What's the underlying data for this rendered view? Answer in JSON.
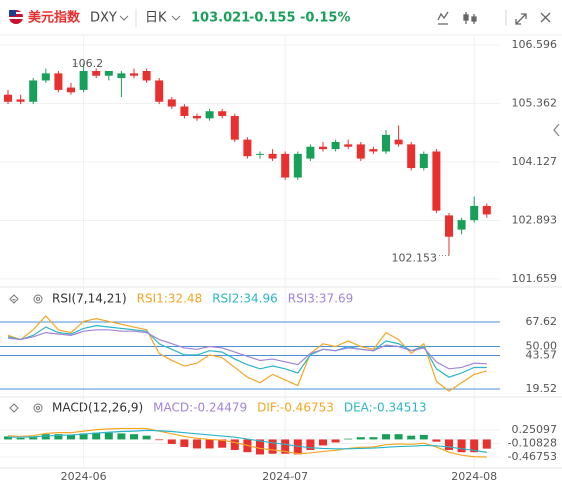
{
  "header": {
    "name": "美元指数",
    "symbol": "DXY",
    "period": "日K",
    "price": "103.021",
    "change": "-0.155",
    "change_pct": "-0.15%"
  },
  "chart_data": [
    {
      "type": "candlestick",
      "categories": [
        null,
        null,
        null,
        null,
        null,
        null,
        "2024-06",
        null,
        null,
        null,
        null,
        null,
        null,
        null,
        null,
        null,
        null,
        null,
        null,
        null,
        null,
        null,
        "2024-07",
        null,
        null,
        null,
        null,
        null,
        null,
        null,
        null,
        null,
        null,
        null,
        null,
        null,
        null,
        "2024-08",
        null
      ],
      "open": [
        105.55,
        105.45,
        105.4,
        105.85,
        106.0,
        105.7,
        105.65,
        106.05,
        105.95,
        105.9,
        106.0,
        106.05,
        105.85,
        105.45,
        105.3,
        105.1,
        105.05,
        105.2,
        105.1,
        104.6,
        104.3,
        104.3,
        104.3,
        103.8,
        104.2,
        104.45,
        104.4,
        104.5,
        104.5,
        104.4,
        104.35,
        104.6,
        104.5,
        104.0,
        104.35,
        103.0,
        102.7,
        102.9,
        103.2
      ],
      "high": [
        105.65,
        105.55,
        105.9,
        106.1,
        106.05,
        105.8,
        106.2,
        106.102,
        106.05,
        106.05,
        106.1,
        106.1,
        105.9,
        105.5,
        105.35,
        105.15,
        105.25,
        105.25,
        105.15,
        104.65,
        104.35,
        104.4,
        104.35,
        104.35,
        104.5,
        104.55,
        104.6,
        104.6,
        104.55,
        104.45,
        104.8,
        104.9,
        104.55,
        104.35,
        104.4,
        103.05,
        102.95,
        103.4,
        103.25
      ],
      "low": [
        105.35,
        105.35,
        105.35,
        105.8,
        105.6,
        105.55,
        105.6,
        105.9,
        105.85,
        105.5,
        105.9,
        105.8,
        105.35,
        105.25,
        105.05,
        105.0,
        105.0,
        105.05,
        104.55,
        104.2,
        104.2,
        104.15,
        103.75,
        103.75,
        104.15,
        104.35,
        104.35,
        104.4,
        104.15,
        104.3,
        104.3,
        104.45,
        103.95,
        103.95,
        103.05,
        102.153,
        102.6,
        102.85,
        102.95
      ],
      "close": [
        105.4,
        105.4,
        105.85,
        106.0,
        105.65,
        105.6,
        106.05,
        105.95,
        106.05,
        106.0,
        105.95,
        105.85,
        105.4,
        105.3,
        105.1,
        105.05,
        105.2,
        105.1,
        104.6,
        104.25,
        104.3,
        104.2,
        103.8,
        104.3,
        104.45,
        104.4,
        104.55,
        104.45,
        104.2,
        104.35,
        104.7,
        104.5,
        104.0,
        104.3,
        103.1,
        102.55,
        102.9,
        103.2,
        103.021
      ],
      "up_color": "#18a05a",
      "down_color": "#e8302f",
      "ylim": [
        101.53,
        106.81
      ],
      "yticks": [
        106.596,
        105.362,
        104.127,
        102.893,
        101.659
      ],
      "grid": true
    },
    {
      "type": "line",
      "title": "RSI(7,14,21)",
      "series": [
        {
          "name": "RSI1",
          "label": "RSI1:32.48",
          "color": "#f5a623",
          "values": [
            58,
            55,
            62,
            72,
            62,
            60,
            68,
            70,
            68,
            66,
            64,
            62,
            45,
            40,
            36,
            38,
            44,
            42,
            35,
            28,
            24,
            30,
            26,
            22,
            45,
            52,
            50,
            54,
            50,
            48,
            60,
            55,
            45,
            52,
            25,
            18,
            24,
            30,
            32.48
          ]
        },
        {
          "name": "RSI2",
          "label": "RSI2:34.96",
          "color": "#2bb5c8",
          "values": [
            57,
            55,
            58,
            64,
            60,
            59,
            63,
            65,
            64,
            63,
            62,
            61,
            52,
            48,
            44,
            44,
            47,
            46,
            41,
            37,
            34,
            36,
            34,
            31,
            44,
            48,
            47,
            50,
            48,
            47,
            54,
            52,
            47,
            50,
            34,
            28,
            31,
            35,
            34.96
          ]
        },
        {
          "name": "RSI3",
          "label": "RSI3:37.69",
          "color": "#a184d8",
          "values": [
            56,
            55,
            57,
            60,
            59,
            58,
            61,
            62,
            62,
            61,
            61,
            60,
            55,
            52,
            49,
            48,
            50,
            49,
            46,
            43,
            40,
            41,
            39,
            37,
            45,
            48,
            47,
            49,
            48,
            47,
            51,
            50,
            47,
            49,
            39,
            34,
            35,
            38,
            37.69
          ]
        }
      ],
      "ylim": [
        15.2,
        83.4
      ],
      "yticks": [
        67.62,
        {
          "value": 50,
          "label": "50.00"
        },
        43.57,
        19.52
      ],
      "grid_color": "#4a90d9"
    },
    {
      "type": "macd",
      "title": "MACD(12,26,9)",
      "series": [
        {
          "name": "MACD",
          "label": "MACD:-0.24479",
          "color": "#a184d8",
          "values": [
            0.08,
            0.04,
            0.06,
            0.14,
            0.14,
            0.12,
            0.16,
            0.18,
            0.18,
            0.16,
            0.14,
            0.1,
            -0.02,
            -0.12,
            -0.2,
            -0.24,
            -0.24,
            -0.22,
            -0.28,
            -0.34,
            -0.4,
            -0.38,
            -0.38,
            -0.4,
            -0.28,
            -0.16,
            -0.08,
            0.02,
            0.06,
            0.06,
            0.14,
            0.14,
            0.1,
            0.12,
            -0.06,
            -0.28,
            -0.34,
            -0.34,
            -0.24479
          ]
        },
        {
          "name": "DIF",
          "label": "DIF:-0.46753",
          "color": "#f5a623",
          "values": [
            0.1,
            0.08,
            0.1,
            0.16,
            0.18,
            0.18,
            0.22,
            0.26,
            0.28,
            0.29,
            0.29,
            0.29,
            0.22,
            0.15,
            0.08,
            0.03,
            0.0,
            -0.02,
            -0.08,
            -0.16,
            -0.24,
            -0.28,
            -0.32,
            -0.38,
            -0.36,
            -0.32,
            -0.29,
            -0.24,
            -0.21,
            -0.2,
            -0.14,
            -0.12,
            -0.13,
            -0.1,
            -0.2,
            -0.34,
            -0.42,
            -0.46,
            -0.46753
          ]
        },
        {
          "name": "DEA",
          "label": "DEA:-0.34513",
          "color": "#2bb5c8",
          "values": [
            0.06,
            0.06,
            0.07,
            0.09,
            0.11,
            0.12,
            0.14,
            0.17,
            0.19,
            0.21,
            0.22,
            0.24,
            0.23,
            0.21,
            0.18,
            0.15,
            0.12,
            0.09,
            0.06,
            0.01,
            -0.04,
            -0.09,
            -0.13,
            -0.18,
            -0.22,
            -0.24,
            -0.25,
            -0.25,
            -0.24,
            -0.23,
            -0.21,
            -0.19,
            -0.18,
            -0.16,
            -0.17,
            -0.2,
            -0.25,
            -0.29,
            -0.34513
          ]
        }
      ],
      "up_color": "#18a05a",
      "down_color": "#e8302f",
      "ylim": [
        -0.76,
        0.57
      ],
      "yticks": [
        0.25097,
        -0.10828,
        -0.46753
      ]
    }
  ]
}
